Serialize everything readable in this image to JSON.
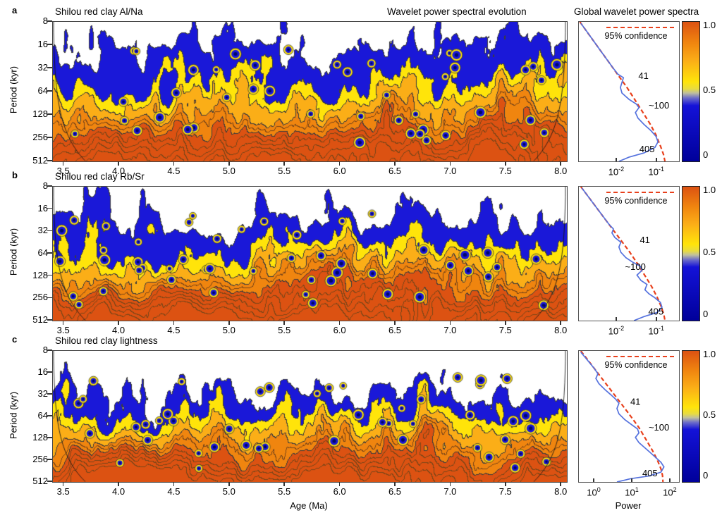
{
  "chart_data": {
    "type": [
      "contour",
      "line"
    ],
    "header_center": "Wavelet power spectral evolution",
    "header_right": "Global wavelet power spectra",
    "period_label": "Period (kyr)",
    "age_label": "Age (Ma)",
    "power_label": "Power",
    "y_scale": "log2",
    "x_scale_spectrum": "log10",
    "colorbar": {
      "ticks": [
        "1.0",
        "0.5",
        "0"
      ],
      "range": [
        0,
        1
      ],
      "stops": [
        {
          "pos": 0.0,
          "color": "#00009A"
        },
        {
          "pos": 0.4,
          "color": "#1412D8"
        },
        {
          "pos": 0.455,
          "color": "#6E6EC8"
        },
        {
          "pos": 0.49,
          "color": "#BFBF9E"
        },
        {
          "pos": 0.52,
          "color": "#E8DC40"
        },
        {
          "pos": 0.57,
          "color": "#FFE40A"
        },
        {
          "pos": 0.72,
          "color": "#FBAE17"
        },
        {
          "pos": 0.85,
          "color": "#F0850F"
        },
        {
          "pos": 1.0,
          "color": "#DC5212"
        }
      ]
    },
    "contour_bands": [
      {
        "cut": 0.33,
        "color": "#FFFFFF"
      },
      {
        "cut": 0.53,
        "color": "#1A18D8"
      },
      {
        "cut": 0.615,
        "color": "#FFE40A"
      },
      {
        "cut": 0.7,
        "color": "#FBAE17"
      },
      {
        "cut": 0.8,
        "color": "#F0850F"
      },
      {
        "cut": 9.0,
        "color": "#DC5212"
      }
    ],
    "contour_line_color": "#3C3C3C",
    "panels": [
      {
        "letter": "a",
        "title": "Shilou red clay Al/Na",
        "x_range": [
          3.4,
          8.05
        ],
        "x_ticks": [
          3.5,
          4.0,
          4.5,
          5.0,
          5.5,
          6.0,
          6.5,
          7.0,
          7.5,
          8.0
        ],
        "y_ticks": [
          8,
          16,
          32,
          64,
          128,
          256,
          512
        ],
        "render": {
          "seed": 101,
          "white_cut": 0.33,
          "noise_amp": 0.5,
          "base_min": 0.15,
          "base_amp": 0.85,
          "base_pow": 0.8,
          "eyes": 44
        },
        "spectrum": {
          "confidence_label": "95% confidence",
          "x_ticks": [
            {
              "mantissa": "10",
              "exp": "-2",
              "frac": 0.38
            },
            {
              "mantissa": "10",
              "exp": "-1",
              "frac": 0.78
            }
          ],
          "peaks": [
            {
              "label": "41",
              "x": 0.645,
              "y": 0.39
            },
            {
              "label": "~100",
              "x": 0.8,
              "y": 0.6
            },
            {
              "label": "405",
              "x": 0.68,
              "y": 0.915
            }
          ],
          "curve": [
            [
              0.02,
              0.01
            ],
            [
              0.08,
              0.07
            ],
            [
              0.15,
              0.14
            ],
            [
              0.22,
              0.21
            ],
            [
              0.28,
              0.27
            ],
            [
              0.34,
              0.33
            ],
            [
              0.39,
              0.375
            ],
            [
              0.445,
              0.4
            ],
            [
              0.43,
              0.435
            ],
            [
              0.415,
              0.47
            ],
            [
              0.43,
              0.51
            ],
            [
              0.5,
              0.555
            ],
            [
              0.575,
              0.59
            ],
            [
              0.6,
              0.615
            ],
            [
              0.565,
              0.65
            ],
            [
              0.59,
              0.69
            ],
            [
              0.65,
              0.735
            ],
            [
              0.72,
              0.78
            ],
            [
              0.77,
              0.82
            ],
            [
              0.79,
              0.86
            ],
            [
              0.76,
              0.9
            ],
            [
              0.65,
              0.94
            ],
            [
              0.5,
              0.97
            ],
            [
              0.4,
              1.0
            ]
          ],
          "confidence_curve": [
            [
              0.01,
              0.0
            ],
            [
              0.12,
              0.11
            ],
            [
              0.25,
              0.24
            ],
            [
              0.38,
              0.37
            ],
            [
              0.48,
              0.47
            ],
            [
              0.57,
              0.57
            ],
            [
              0.64,
              0.65
            ],
            [
              0.71,
              0.73
            ],
            [
              0.77,
              0.81
            ],
            [
              0.815,
              0.89
            ],
            [
              0.845,
              0.95
            ],
            [
              0.86,
              1.0
            ]
          ]
        }
      },
      {
        "letter": "b",
        "title": "Shilou red clay Rb/Sr",
        "x_range": [
          3.4,
          8.05
        ],
        "x_ticks": [
          3.5,
          4.0,
          4.5,
          5.0,
          5.5,
          6.0,
          6.5,
          7.0,
          7.5,
          8.0
        ],
        "y_ticks": [
          8,
          16,
          32,
          64,
          128,
          256,
          512
        ],
        "render": {
          "seed": 202,
          "white_cut": 0.345,
          "noise_amp": 0.52,
          "base_min": 0.14,
          "base_amp": 0.86,
          "base_pow": 0.82,
          "eyes": 48
        },
        "spectrum": {
          "confidence_label": "95% confidence",
          "x_ticks": [
            {
              "mantissa": "10",
              "exp": "-2",
              "frac": 0.38
            },
            {
              "mantissa": "10",
              "exp": "-1",
              "frac": 0.78
            }
          ],
          "peaks": [
            {
              "label": "41",
              "x": 0.66,
              "y": 0.4
            },
            {
              "label": "~100",
              "x": 0.565,
              "y": 0.6
            },
            {
              "label": "405",
              "x": 0.77,
              "y": 0.935
            }
          ],
          "curve": [
            [
              0.03,
              0.01
            ],
            [
              0.1,
              0.08
            ],
            [
              0.17,
              0.15
            ],
            [
              0.24,
              0.22
            ],
            [
              0.3,
              0.28
            ],
            [
              0.345,
              0.315
            ],
            [
              0.33,
              0.345
            ],
            [
              0.36,
              0.38
            ],
            [
              0.42,
              0.415
            ],
            [
              0.4,
              0.45
            ],
            [
              0.42,
              0.49
            ],
            [
              0.47,
              0.53
            ],
            [
              0.54,
              0.565
            ],
            [
              0.615,
              0.595
            ],
            [
              0.63,
              0.625
            ],
            [
              0.58,
              0.66
            ],
            [
              0.62,
              0.7
            ],
            [
              0.68,
              0.73
            ],
            [
              0.66,
              0.77
            ],
            [
              0.7,
              0.8
            ],
            [
              0.76,
              0.83
            ],
            [
              0.815,
              0.865
            ],
            [
              0.83,
              0.9
            ],
            [
              0.78,
              0.94
            ],
            [
              0.65,
              0.97
            ],
            [
              0.55,
              1.0
            ]
          ],
          "confidence_curve": [
            [
              0.02,
              0.0
            ],
            [
              0.14,
              0.12
            ],
            [
              0.27,
              0.25
            ],
            [
              0.4,
              0.38
            ],
            [
              0.5,
              0.48
            ],
            [
              0.59,
              0.58
            ],
            [
              0.665,
              0.67
            ],
            [
              0.73,
              0.75
            ],
            [
              0.785,
              0.83
            ],
            [
              0.825,
              0.9
            ],
            [
              0.85,
              0.96
            ],
            [
              0.86,
              1.0
            ]
          ]
        }
      },
      {
        "letter": "c",
        "title": "Shilou red clay lightness",
        "x_range": [
          3.4,
          8.05
        ],
        "x_ticks": [
          3.5,
          4.0,
          4.5,
          5.0,
          5.5,
          6.0,
          6.5,
          7.0,
          7.5,
          8.0
        ],
        "y_ticks": [
          8,
          16,
          32,
          64,
          128,
          256,
          512
        ],
        "render": {
          "seed": 303,
          "white_cut": 0.4,
          "noise_amp": 0.55,
          "base_min": 0.1,
          "base_amp": 0.92,
          "base_pow": 0.85,
          "eyes": 46
        },
        "spectrum": {
          "confidence_label": "95% confidence",
          "x_ticks": [
            {
              "mantissa": "10",
              "exp": "0",
              "frac": 0.155
            },
            {
              "mantissa": "10",
              "exp": "1",
              "frac": 0.535
            },
            {
              "mantissa": "10",
              "exp": "2",
              "frac": 0.915
            }
          ],
          "peaks": [
            {
              "label": "41",
              "x": 0.565,
              "y": 0.39
            },
            {
              "label": "~100",
              "x": 0.8,
              "y": 0.585
            },
            {
              "label": "405",
              "x": 0.71,
              "y": 0.935
            }
          ],
          "curve": [
            [
              0.02,
              0.01
            ],
            [
              0.09,
              0.075
            ],
            [
              0.155,
              0.135
            ],
            [
              0.19,
              0.175
            ],
            [
              0.17,
              0.21
            ],
            [
              0.2,
              0.25
            ],
            [
              0.26,
              0.295
            ],
            [
              0.32,
              0.335
            ],
            [
              0.37,
              0.37
            ],
            [
              0.4,
              0.4
            ],
            [
              0.38,
              0.44
            ],
            [
              0.4,
              0.48
            ],
            [
              0.46,
              0.525
            ],
            [
              0.53,
              0.565
            ],
            [
              0.585,
              0.595
            ],
            [
              0.6,
              0.625
            ],
            [
              0.565,
              0.66
            ],
            [
              0.6,
              0.7
            ],
            [
              0.66,
              0.74
            ],
            [
              0.72,
              0.78
            ],
            [
              0.77,
              0.815
            ],
            [
              0.82,
              0.85
            ],
            [
              0.85,
              0.885
            ],
            [
              0.82,
              0.925
            ],
            [
              0.7,
              0.955
            ],
            [
              0.52,
              0.975
            ],
            [
              0.38,
              1.0
            ]
          ],
          "confidence_curve": [
            [
              0.02,
              0.0
            ],
            [
              0.13,
              0.11
            ],
            [
              0.26,
              0.24
            ],
            [
              0.39,
              0.37
            ],
            [
              0.5,
              0.48
            ],
            [
              0.6,
              0.585
            ],
            [
              0.67,
              0.675
            ],
            [
              0.735,
              0.76
            ],
            [
              0.785,
              0.835
            ],
            [
              0.82,
              0.9
            ],
            [
              0.835,
              0.95
            ],
            [
              0.84,
              1.0
            ]
          ]
        }
      }
    ]
  }
}
